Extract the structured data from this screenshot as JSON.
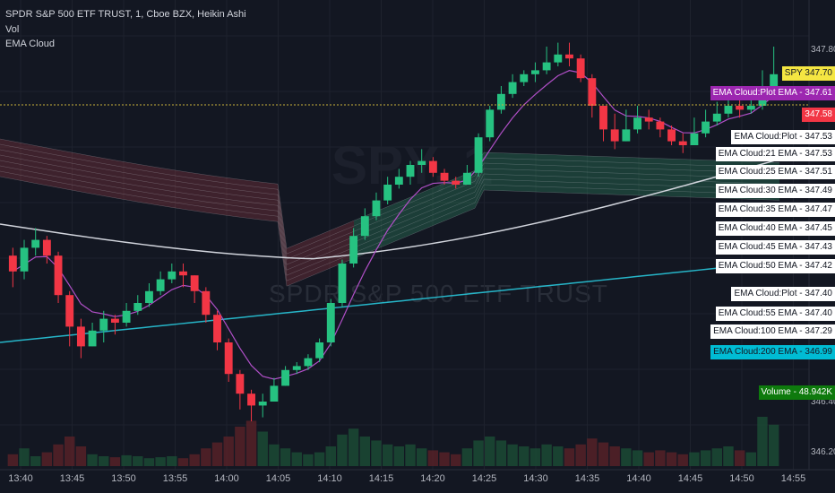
{
  "legend": {
    "symbol_line": "SPDR S&P 500 ETF TRUST, 1, Cboe BZX, Heikin Ashi",
    "vol_label": "Vol",
    "ema_label": "EMA Cloud"
  },
  "watermark": {
    "ticker": "SPY, 1",
    "name": "SPDR S&P 500 ETF TRUST"
  },
  "x_axis": [
    "13:40",
    "13:45",
    "13:50",
    "13:55",
    "14:00",
    "14:05",
    "14:10",
    "14:15",
    "14:20",
    "14:25",
    "14:30",
    "14:35",
    "14:40",
    "14:45",
    "14:50",
    "14:55"
  ],
  "y_axis": [
    "347.80",
    "346.40",
    "346.20"
  ],
  "price_tags": [
    {
      "label": "SPY",
      "value": "347.70",
      "bg": "#f5e642",
      "fg": "#131722"
    },
    {
      "label": "EMA Cloud:Plot EMA",
      "value": "347.61",
      "bg": "#9c27b0",
      "fg": "#ffffff"
    },
    {
      "label": "",
      "value": "347.58",
      "bg": "#f23645",
      "fg": "#ffffff"
    },
    {
      "label": "EMA Cloud:Plot",
      "value": "347.53",
      "bg": "#ffffff",
      "fg": "#131722"
    },
    {
      "label": "EMA Cloud:21 EMA",
      "value": "347.53",
      "bg": "#ffffff",
      "fg": "#131722"
    },
    {
      "label": "EMA Cloud:25 EMA",
      "value": "347.51",
      "bg": "#ffffff",
      "fg": "#131722"
    },
    {
      "label": "EMA Cloud:30 EMA",
      "value": "347.49",
      "bg": "#ffffff",
      "fg": "#131722"
    },
    {
      "label": "EMA Cloud:35 EMA",
      "value": "347.47",
      "bg": "#ffffff",
      "fg": "#131722"
    },
    {
      "label": "EMA Cloud:40 EMA",
      "value": "347.45",
      "bg": "#ffffff",
      "fg": "#131722"
    },
    {
      "label": "EMA Cloud:45 EMA",
      "value": "347.43",
      "bg": "#ffffff",
      "fg": "#131722"
    },
    {
      "label": "EMA Cloud:50 EMA",
      "value": "347.42",
      "bg": "#ffffff",
      "fg": "#131722"
    },
    {
      "label": "EMA Cloud:Plot",
      "value": "347.40",
      "bg": "#ffffff",
      "fg": "#131722"
    },
    {
      "label": "EMA Cloud:55 EMA",
      "value": "347.40",
      "bg": "#ffffff",
      "fg": "#131722"
    },
    {
      "label": "EMA Cloud:100 EMA",
      "value": "347.29",
      "bg": "#ffffff",
      "fg": "#131722"
    },
    {
      "label": "EMA Cloud:200 EMA",
      "value": "346.99",
      "bg": "#00bcd4",
      "fg": "#131722"
    },
    {
      "label": "Volume",
      "value": "48.942K",
      "bg": "#0e7a0d",
      "fg": "#ffffff"
    }
  ],
  "colors": {
    "background": "#131722",
    "up": "#26c281",
    "down": "#f23645",
    "cloud_bear": "#9c3b45",
    "cloud_bull": "#2e7d5b",
    "ema_fast": "#b04fc7",
    "ema_100": "#d1d4dc",
    "ema_200": "#26b5c8",
    "last_price_line": "#c9b23a"
  },
  "chart_data": {
    "type": "candlestick",
    "chart_style": "Heikin Ashi",
    "symbol": "SPY",
    "interval": "1",
    "x_ticks": [
      "13:40",
      "13:45",
      "13:50",
      "13:55",
      "14:00",
      "14:05",
      "14:10",
      "14:15",
      "14:20",
      "14:25",
      "14:30",
      "14:35",
      "14:40",
      "14:45",
      "14:50",
      "14:55"
    ],
    "last_price": 347.7,
    "ema_values": {
      "Plot EMA": 347.61,
      "21 EMA": 347.53,
      "25 EMA": 347.51,
      "30 EMA": 347.49,
      "35 EMA": 347.47,
      "40 EMA": 347.45,
      "45 EMA": 347.43,
      "50 EMA": 347.42,
      "55 EMA": 347.4,
      "100 EMA": 347.29,
      "200 EMA": 346.99
    },
    "volume_last": "48.942K",
    "candles": [
      {
        "o": 0.42,
        "c": 0.38,
        "h": 0.44,
        "l": 0.34
      },
      {
        "o": 0.38,
        "c": 0.44,
        "h": 0.46,
        "l": 0.36
      },
      {
        "o": 0.44,
        "c": 0.46,
        "h": 0.49,
        "l": 0.42
      },
      {
        "o": 0.46,
        "c": 0.42,
        "h": 0.47,
        "l": 0.4
      },
      {
        "o": 0.42,
        "c": 0.32,
        "h": 0.43,
        "l": 0.3
      },
      {
        "o": 0.32,
        "c": 0.24,
        "h": 0.33,
        "l": 0.19
      },
      {
        "o": 0.24,
        "c": 0.19,
        "h": 0.26,
        "l": 0.16
      },
      {
        "o": 0.19,
        "c": 0.23,
        "h": 0.25,
        "l": 0.19
      },
      {
        "o": 0.23,
        "c": 0.26,
        "h": 0.28,
        "l": 0.2
      },
      {
        "o": 0.26,
        "c": 0.25,
        "h": 0.27,
        "l": 0.22
      },
      {
        "o": 0.25,
        "c": 0.28,
        "h": 0.3,
        "l": 0.24
      },
      {
        "o": 0.28,
        "c": 0.3,
        "h": 0.32,
        "l": 0.27
      },
      {
        "o": 0.3,
        "c": 0.33,
        "h": 0.35,
        "l": 0.29
      },
      {
        "o": 0.33,
        "c": 0.36,
        "h": 0.38,
        "l": 0.32
      },
      {
        "o": 0.36,
        "c": 0.38,
        "h": 0.4,
        "l": 0.35
      },
      {
        "o": 0.38,
        "c": 0.37,
        "h": 0.4,
        "l": 0.34
      },
      {
        "o": 0.37,
        "c": 0.33,
        "h": 0.37,
        "l": 0.3
      },
      {
        "o": 0.33,
        "c": 0.27,
        "h": 0.34,
        "l": 0.25
      },
      {
        "o": 0.27,
        "c": 0.2,
        "h": 0.28,
        "l": 0.18
      },
      {
        "o": 0.2,
        "c": 0.12,
        "h": 0.21,
        "l": 0.1
      },
      {
        "o": 0.12,
        "c": 0.07,
        "h": 0.13,
        "l": 0.03
      },
      {
        "o": 0.07,
        "c": 0.04,
        "h": 0.08,
        "l": 0.0
      },
      {
        "o": 0.04,
        "c": 0.05,
        "h": 0.07,
        "l": 0.01
      },
      {
        "o": 0.05,
        "c": 0.09,
        "h": 0.11,
        "l": 0.05
      },
      {
        "o": 0.09,
        "c": 0.13,
        "h": 0.14,
        "l": 0.09
      },
      {
        "o": 0.13,
        "c": 0.14,
        "h": 0.15,
        "l": 0.12
      },
      {
        "o": 0.14,
        "c": 0.16,
        "h": 0.17,
        "l": 0.13
      },
      {
        "o": 0.16,
        "c": 0.2,
        "h": 0.21,
        "l": 0.15
      },
      {
        "o": 0.2,
        "c": 0.3,
        "h": 0.31,
        "l": 0.19
      },
      {
        "o": 0.3,
        "c": 0.4,
        "h": 0.41,
        "l": 0.29
      },
      {
        "o": 0.4,
        "c": 0.47,
        "h": 0.49,
        "l": 0.39
      },
      {
        "o": 0.47,
        "c": 0.52,
        "h": 0.54,
        "l": 0.46
      },
      {
        "o": 0.52,
        "c": 0.56,
        "h": 0.58,
        "l": 0.51
      },
      {
        "o": 0.56,
        "c": 0.6,
        "h": 0.62,
        "l": 0.55
      },
      {
        "o": 0.6,
        "c": 0.62,
        "h": 0.64,
        "l": 0.59
      },
      {
        "o": 0.62,
        "c": 0.65,
        "h": 0.66,
        "l": 0.6
      },
      {
        "o": 0.65,
        "c": 0.66,
        "h": 0.69,
        "l": 0.63
      },
      {
        "o": 0.66,
        "c": 0.63,
        "h": 0.67,
        "l": 0.62
      },
      {
        "o": 0.63,
        "c": 0.61,
        "h": 0.64,
        "l": 0.6
      },
      {
        "o": 0.61,
        "c": 0.6,
        "h": 0.62,
        "l": 0.59
      },
      {
        "o": 0.6,
        "c": 0.63,
        "h": 0.65,
        "l": 0.6
      },
      {
        "o": 0.63,
        "c": 0.72,
        "h": 0.73,
        "l": 0.62
      },
      {
        "o": 0.72,
        "c": 0.79,
        "h": 0.8,
        "l": 0.71
      },
      {
        "o": 0.79,
        "c": 0.83,
        "h": 0.85,
        "l": 0.78
      },
      {
        "o": 0.83,
        "c": 0.86,
        "h": 0.88,
        "l": 0.82
      },
      {
        "o": 0.86,
        "c": 0.88,
        "h": 0.89,
        "l": 0.85
      },
      {
        "o": 0.88,
        "c": 0.89,
        "h": 0.91,
        "l": 0.86
      },
      {
        "o": 0.89,
        "c": 0.91,
        "h": 0.95,
        "l": 0.88
      },
      {
        "o": 0.91,
        "c": 0.93,
        "h": 0.96,
        "l": 0.9
      },
      {
        "o": 0.93,
        "c": 0.92,
        "h": 0.96,
        "l": 0.9
      },
      {
        "o": 0.92,
        "c": 0.87,
        "h": 0.93,
        "l": 0.86
      },
      {
        "o": 0.87,
        "c": 0.8,
        "h": 0.88,
        "l": 0.77
      },
      {
        "o": 0.8,
        "c": 0.74,
        "h": 0.8,
        "l": 0.71
      },
      {
        "o": 0.74,
        "c": 0.71,
        "h": 0.78,
        "l": 0.69
      },
      {
        "o": 0.71,
        "c": 0.74,
        "h": 0.79,
        "l": 0.71
      },
      {
        "o": 0.74,
        "c": 0.77,
        "h": 0.8,
        "l": 0.73
      },
      {
        "o": 0.77,
        "c": 0.76,
        "h": 0.79,
        "l": 0.74
      },
      {
        "o": 0.76,
        "c": 0.74,
        "h": 0.77,
        "l": 0.72
      },
      {
        "o": 0.74,
        "c": 0.71,
        "h": 0.75,
        "l": 0.7
      },
      {
        "o": 0.71,
        "c": 0.7,
        "h": 0.73,
        "l": 0.68
      },
      {
        "o": 0.7,
        "c": 0.73,
        "h": 0.77,
        "l": 0.7
      },
      {
        "o": 0.73,
        "c": 0.76,
        "h": 0.79,
        "l": 0.72
      },
      {
        "o": 0.76,
        "c": 0.78,
        "h": 0.81,
        "l": 0.75
      },
      {
        "o": 0.78,
        "c": 0.8,
        "h": 0.84,
        "l": 0.77
      },
      {
        "o": 0.8,
        "c": 0.79,
        "h": 0.82,
        "l": 0.77
      },
      {
        "o": 0.79,
        "c": 0.8,
        "h": 0.82,
        "l": 0.78
      },
      {
        "o": 0.8,
        "c": 0.85,
        "h": 0.89,
        "l": 0.79
      },
      {
        "o": 0.85,
        "c": 0.88,
        "h": 0.95,
        "l": 0.84
      }
    ],
    "volume": [
      0.12,
      0.18,
      0.1,
      0.14,
      0.22,
      0.3,
      0.2,
      0.12,
      0.1,
      0.09,
      0.11,
      0.1,
      0.08,
      0.09,
      0.1,
      0.08,
      0.12,
      0.18,
      0.24,
      0.3,
      0.4,
      0.46,
      0.35,
      0.22,
      0.18,
      0.14,
      0.12,
      0.14,
      0.2,
      0.32,
      0.38,
      0.3,
      0.26,
      0.22,
      0.2,
      0.22,
      0.18,
      0.16,
      0.14,
      0.12,
      0.18,
      0.26,
      0.3,
      0.26,
      0.22,
      0.2,
      0.18,
      0.22,
      0.2,
      0.18,
      0.22,
      0.28,
      0.24,
      0.2,
      0.18,
      0.16,
      0.14,
      0.16,
      0.14,
      0.12,
      0.14,
      0.16,
      0.18,
      0.2,
      0.16,
      0.14,
      0.5,
      0.42
    ]
  }
}
